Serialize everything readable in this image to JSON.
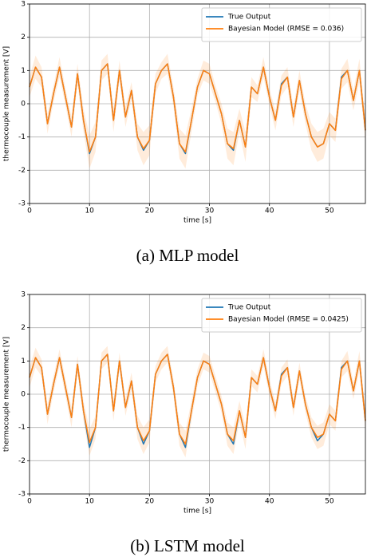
{
  "chart_data": [
    {
      "type": "line",
      "caption": "(a) MLP model",
      "xlabel": "time [s]",
      "ylabel": "thermocouple measurement [V]",
      "xlim": [
        0,
        56
      ],
      "ylim": [
        -3,
        3
      ],
      "xticks": [
        0,
        10,
        20,
        30,
        40,
        50
      ],
      "yticks": [
        -3,
        -2,
        -1,
        0,
        1,
        2,
        3
      ],
      "grid": true,
      "legend": "upper right",
      "x": [
        0,
        1,
        2,
        3,
        4,
        5,
        6,
        7,
        8,
        9,
        10,
        11,
        12,
        13,
        14,
        15,
        16,
        17,
        18,
        19,
        20,
        21,
        22,
        23,
        24,
        25,
        26,
        27,
        28,
        29,
        30,
        31,
        32,
        33,
        34,
        35,
        36,
        37,
        38,
        39,
        40,
        41,
        42,
        43,
        44,
        45,
        46,
        47,
        48,
        49,
        50,
        51,
        52,
        53,
        54,
        55,
        56
      ],
      "series": [
        {
          "name": "True Output",
          "color": "#1f77b4",
          "values": [
            0.5,
            1.1,
            0.8,
            -0.6,
            0.3,
            1.1,
            0.2,
            -0.7,
            0.9,
            -0.5,
            -1.5,
            -1.0,
            1.0,
            1.2,
            -0.5,
            1.0,
            -0.4,
            0.4,
            -1.0,
            -1.4,
            -1.1,
            0.6,
            1.0,
            1.2,
            0.2,
            -1.2,
            -1.5,
            -0.5,
            0.5,
            1.0,
            0.9,
            0.3,
            -0.3,
            -1.2,
            -1.4,
            -0.5,
            -1.3,
            0.5,
            0.3,
            1.1,
            0.2,
            -0.5,
            0.6,
            0.8,
            -0.4,
            0.7,
            -0.3,
            -1.0,
            -1.3,
            -1.2,
            -0.6,
            -0.8,
            0.8,
            1.0,
            0.1,
            1.0,
            -0.8
          ]
        },
        {
          "name": "Bayesian Model (RMSE = 0.036)",
          "color": "#ff7f0e",
          "values": [
            0.5,
            1.1,
            0.8,
            -0.6,
            0.3,
            1.1,
            0.2,
            -0.7,
            0.9,
            -0.5,
            -1.45,
            -1.0,
            1.0,
            1.2,
            -0.5,
            1.0,
            -0.4,
            0.4,
            -1.0,
            -1.35,
            -1.1,
            0.6,
            1.0,
            1.2,
            0.2,
            -1.2,
            -1.45,
            -0.5,
            0.5,
            1.0,
            0.9,
            0.3,
            -0.3,
            -1.2,
            -1.35,
            -0.5,
            -1.3,
            0.5,
            0.3,
            1.1,
            0.2,
            -0.5,
            0.55,
            0.8,
            -0.4,
            0.7,
            -0.3,
            -1.0,
            -1.3,
            -1.2,
            -0.6,
            -0.8,
            0.75,
            1.0,
            0.1,
            1.0,
            -0.8
          ],
          "uncertainty": [
            0.3,
            0.35,
            0.3,
            0.3,
            0.25,
            0.3,
            0.25,
            0.3,
            0.3,
            0.35,
            0.5,
            0.45,
            0.3,
            0.3,
            0.35,
            0.3,
            0.3,
            0.25,
            0.4,
            0.5,
            0.45,
            0.3,
            0.25,
            0.3,
            0.3,
            0.45,
            0.5,
            0.35,
            0.25,
            0.3,
            0.3,
            0.25,
            0.3,
            0.45,
            0.5,
            0.35,
            0.45,
            0.3,
            0.25,
            0.3,
            0.25,
            0.3,
            0.3,
            0.3,
            0.3,
            0.3,
            0.3,
            0.4,
            0.45,
            0.45,
            0.35,
            0.35,
            0.3,
            0.35,
            0.3,
            0.35,
            0.35
          ]
        }
      ]
    },
    {
      "type": "line",
      "caption": "(b) LSTM model",
      "xlabel": "time [s]",
      "ylabel": "thermocouple measurement [V]",
      "xlim": [
        0,
        56
      ],
      "ylim": [
        -3,
        3
      ],
      "xticks": [
        0,
        10,
        20,
        30,
        40,
        50
      ],
      "yticks": [
        -3,
        -2,
        -1,
        0,
        1,
        2,
        3
      ],
      "grid": true,
      "legend": "upper right",
      "x": [
        0,
        1,
        2,
        3,
        4,
        5,
        6,
        7,
        8,
        9,
        10,
        11,
        12,
        13,
        14,
        15,
        16,
        17,
        18,
        19,
        20,
        21,
        22,
        23,
        24,
        25,
        26,
        27,
        28,
        29,
        30,
        31,
        32,
        33,
        34,
        35,
        36,
        37,
        38,
        39,
        40,
        41,
        42,
        43,
        44,
        45,
        46,
        47,
        48,
        49,
        50,
        51,
        52,
        53,
        54,
        55,
        56
      ],
      "series": [
        {
          "name": "True Output",
          "color": "#1f77b4",
          "values": [
            0.5,
            1.1,
            0.8,
            -0.6,
            0.3,
            1.1,
            0.2,
            -0.7,
            0.9,
            -0.5,
            -1.6,
            -1.0,
            1.0,
            1.2,
            -0.5,
            1.0,
            -0.4,
            0.4,
            -1.0,
            -1.5,
            -1.1,
            0.6,
            1.0,
            1.2,
            0.2,
            -1.2,
            -1.6,
            -0.5,
            0.5,
            1.0,
            0.9,
            0.3,
            -0.3,
            -1.2,
            -1.5,
            -0.5,
            -1.3,
            0.5,
            0.3,
            1.1,
            0.2,
            -0.5,
            0.6,
            0.8,
            -0.4,
            0.7,
            -0.3,
            -1.0,
            -1.4,
            -1.2,
            -0.6,
            -0.8,
            0.8,
            1.0,
            0.1,
            1.0,
            -0.8
          ]
        },
        {
          "name": "Bayesian Model (RMSE = 0.0425)",
          "color": "#ff7f0e",
          "values": [
            0.5,
            1.1,
            0.8,
            -0.6,
            0.3,
            1.1,
            0.2,
            -0.7,
            0.9,
            -0.5,
            -1.45,
            -1.0,
            1.0,
            1.2,
            -0.5,
            1.0,
            -0.4,
            0.4,
            -1.0,
            -1.4,
            -1.1,
            0.6,
            1.0,
            1.2,
            0.2,
            -1.2,
            -1.5,
            -0.5,
            0.5,
            1.0,
            0.9,
            0.3,
            -0.3,
            -1.2,
            -1.4,
            -0.5,
            -1.3,
            0.5,
            0.3,
            1.1,
            0.2,
            -0.5,
            0.55,
            0.8,
            -0.4,
            0.7,
            -0.3,
            -1.0,
            -1.3,
            -1.2,
            -0.6,
            -0.8,
            0.75,
            1.0,
            0.1,
            1.0,
            -0.8
          ],
          "uncertainty": [
            0.3,
            0.3,
            0.25,
            0.3,
            0.25,
            0.25,
            0.25,
            0.3,
            0.25,
            0.3,
            0.4,
            0.35,
            0.25,
            0.25,
            0.3,
            0.25,
            0.25,
            0.25,
            0.35,
            0.4,
            0.35,
            0.25,
            0.25,
            0.25,
            0.25,
            0.35,
            0.4,
            0.3,
            0.25,
            0.25,
            0.25,
            0.25,
            0.25,
            0.35,
            0.4,
            0.3,
            0.35,
            0.25,
            0.25,
            0.25,
            0.25,
            0.25,
            0.25,
            0.25,
            0.25,
            0.25,
            0.25,
            0.3,
            0.35,
            0.35,
            0.3,
            0.3,
            0.25,
            0.3,
            0.25,
            0.3,
            0.3
          ]
        }
      ]
    }
  ]
}
